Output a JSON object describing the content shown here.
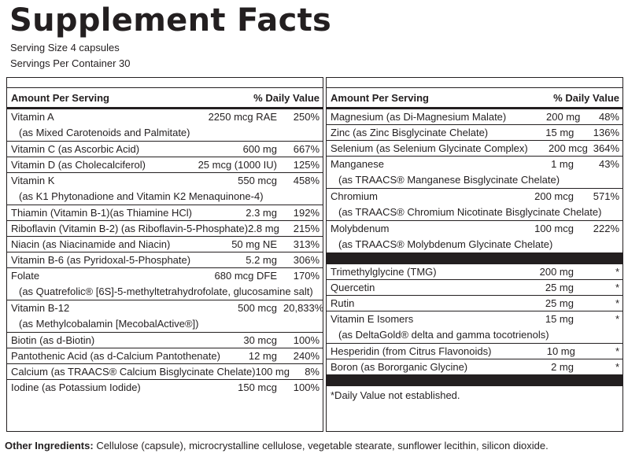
{
  "title": "Supplement Facts",
  "serving_size": "Serving Size 4 capsules",
  "servings_per_container": "Servings Per Container 30",
  "left_panel": {
    "header_amount": "Amount Per Serving",
    "header_dv": "% Daily Value",
    "rows": [
      {
        "name": "Vitamin A",
        "amount": "2250 mcg RAE",
        "dv": "250%",
        "sub": "(as Mixed Carotenoids and Palmitate)"
      },
      {
        "name": "Vitamin C (as Ascorbic Acid)",
        "amount": "600 mg",
        "dv": "667%"
      },
      {
        "name": "Vitamin D (as Cholecalciferol)",
        "amount": "25 mcg (1000 IU)",
        "dv": "125%"
      },
      {
        "name": "Vitamin K",
        "amount": "550 mcg",
        "dv": "458%",
        "sub": "(as K1 Phytonadione and Vitamin K2 Menaquinone-4)"
      },
      {
        "name": "Thiamin (Vitamin B-1)(as Thiamine HCl)",
        "amount": "2.3 mg",
        "dv": "192%"
      },
      {
        "name": "Riboflavin (Vitamin B-2) (as Riboflavin-5-Phosphate)",
        "amount": "2.8 mg",
        "dv": "215%"
      },
      {
        "name": "Niacin (as Niacinamide and Niacin)",
        "amount": "50 mg NE",
        "dv": "313%"
      },
      {
        "name": "Vitamin B-6 (as Pyridoxal-5-Phosphate)",
        "amount": "5.2 mg",
        "dv": "306%"
      },
      {
        "name": "Folate",
        "amount": "680 mcg DFE",
        "dv": "170%",
        "sub": "(as Quatrefolic® [6S]-5-methyltetrahydrofolate, glucosamine salt)"
      },
      {
        "name": "Vitamin B-12",
        "amount": "500 mcg",
        "dv": "20,833%",
        "sub": "(as Methylcobalamin [MecobalActive®])"
      },
      {
        "name": "Biotin (as d-Biotin)",
        "amount": "30 mcg",
        "dv": "100%"
      },
      {
        "name": "Pantothenic Acid (as d-Calcium Pantothenate)",
        "amount": "12 mg",
        "dv": "240%"
      },
      {
        "name": "Calcium (as TRAACS® Calcium Bisglycinate Chelate)",
        "amount": "100 mg",
        "dv": "8%"
      },
      {
        "name": "Iodine (as Potassium Iodide)",
        "amount": "150 mcg",
        "dv": "100%"
      }
    ]
  },
  "right_panel": {
    "header_amount": "Amount Per Serving",
    "header_dv": "% Daily Value",
    "rows_a": [
      {
        "name": "Magnesium (as Di-Magnesium Malate)",
        "amount": "200 mg",
        "dv": "48%"
      },
      {
        "name": "Zinc (as Zinc Bisglycinate Chelate)",
        "amount": "15 mg",
        "dv": "136%"
      },
      {
        "name": "Selenium (as Selenium Glycinate Complex)",
        "amount": "200 mcg",
        "dv": "364%"
      },
      {
        "name": "Manganese",
        "amount": "1 mg",
        "dv": "43%",
        "sub": "(as TRAACS® Manganese Bisglycinate Chelate)"
      },
      {
        "name": "Chromium",
        "amount": "200 mcg",
        "dv": "571%",
        "sub": "(as TRAACS® Chromium Nicotinate Bisglycinate Chelate)"
      },
      {
        "name": "Molybdenum",
        "amount": "100 mcg",
        "dv": "222%",
        "sub": "(as TRAACS® Molybdenum Glycinate Chelate)"
      }
    ],
    "rows_b": [
      {
        "name": "Trimethylglycine (TMG)",
        "amount": "200 mg",
        "dv": "*"
      },
      {
        "name": "Quercetin",
        "amount": "25 mg",
        "dv": "*"
      },
      {
        "name": "Rutin",
        "amount": "25 mg",
        "dv": "*"
      },
      {
        "name": "Vitamin E Isomers",
        "amount": "15 mg",
        "dv": "*",
        "sub": "(as DeltaGold® delta and gamma tocotrienols)"
      },
      {
        "name": "Hesperidin (from Citrus Flavonoids)",
        "amount": "10 mg",
        "dv": "*"
      },
      {
        "name": "Boron (as Bororganic Glycine)",
        "amount": "2 mg",
        "dv": "*"
      }
    ],
    "footnote": "*Daily Value not established."
  },
  "other_ingredients": {
    "label": "Other Ingredients:",
    "text": "Cellulose (capsule), microcrystalline cellulose, vegetable stearate, sunflower lecithin, silicon dioxide."
  }
}
